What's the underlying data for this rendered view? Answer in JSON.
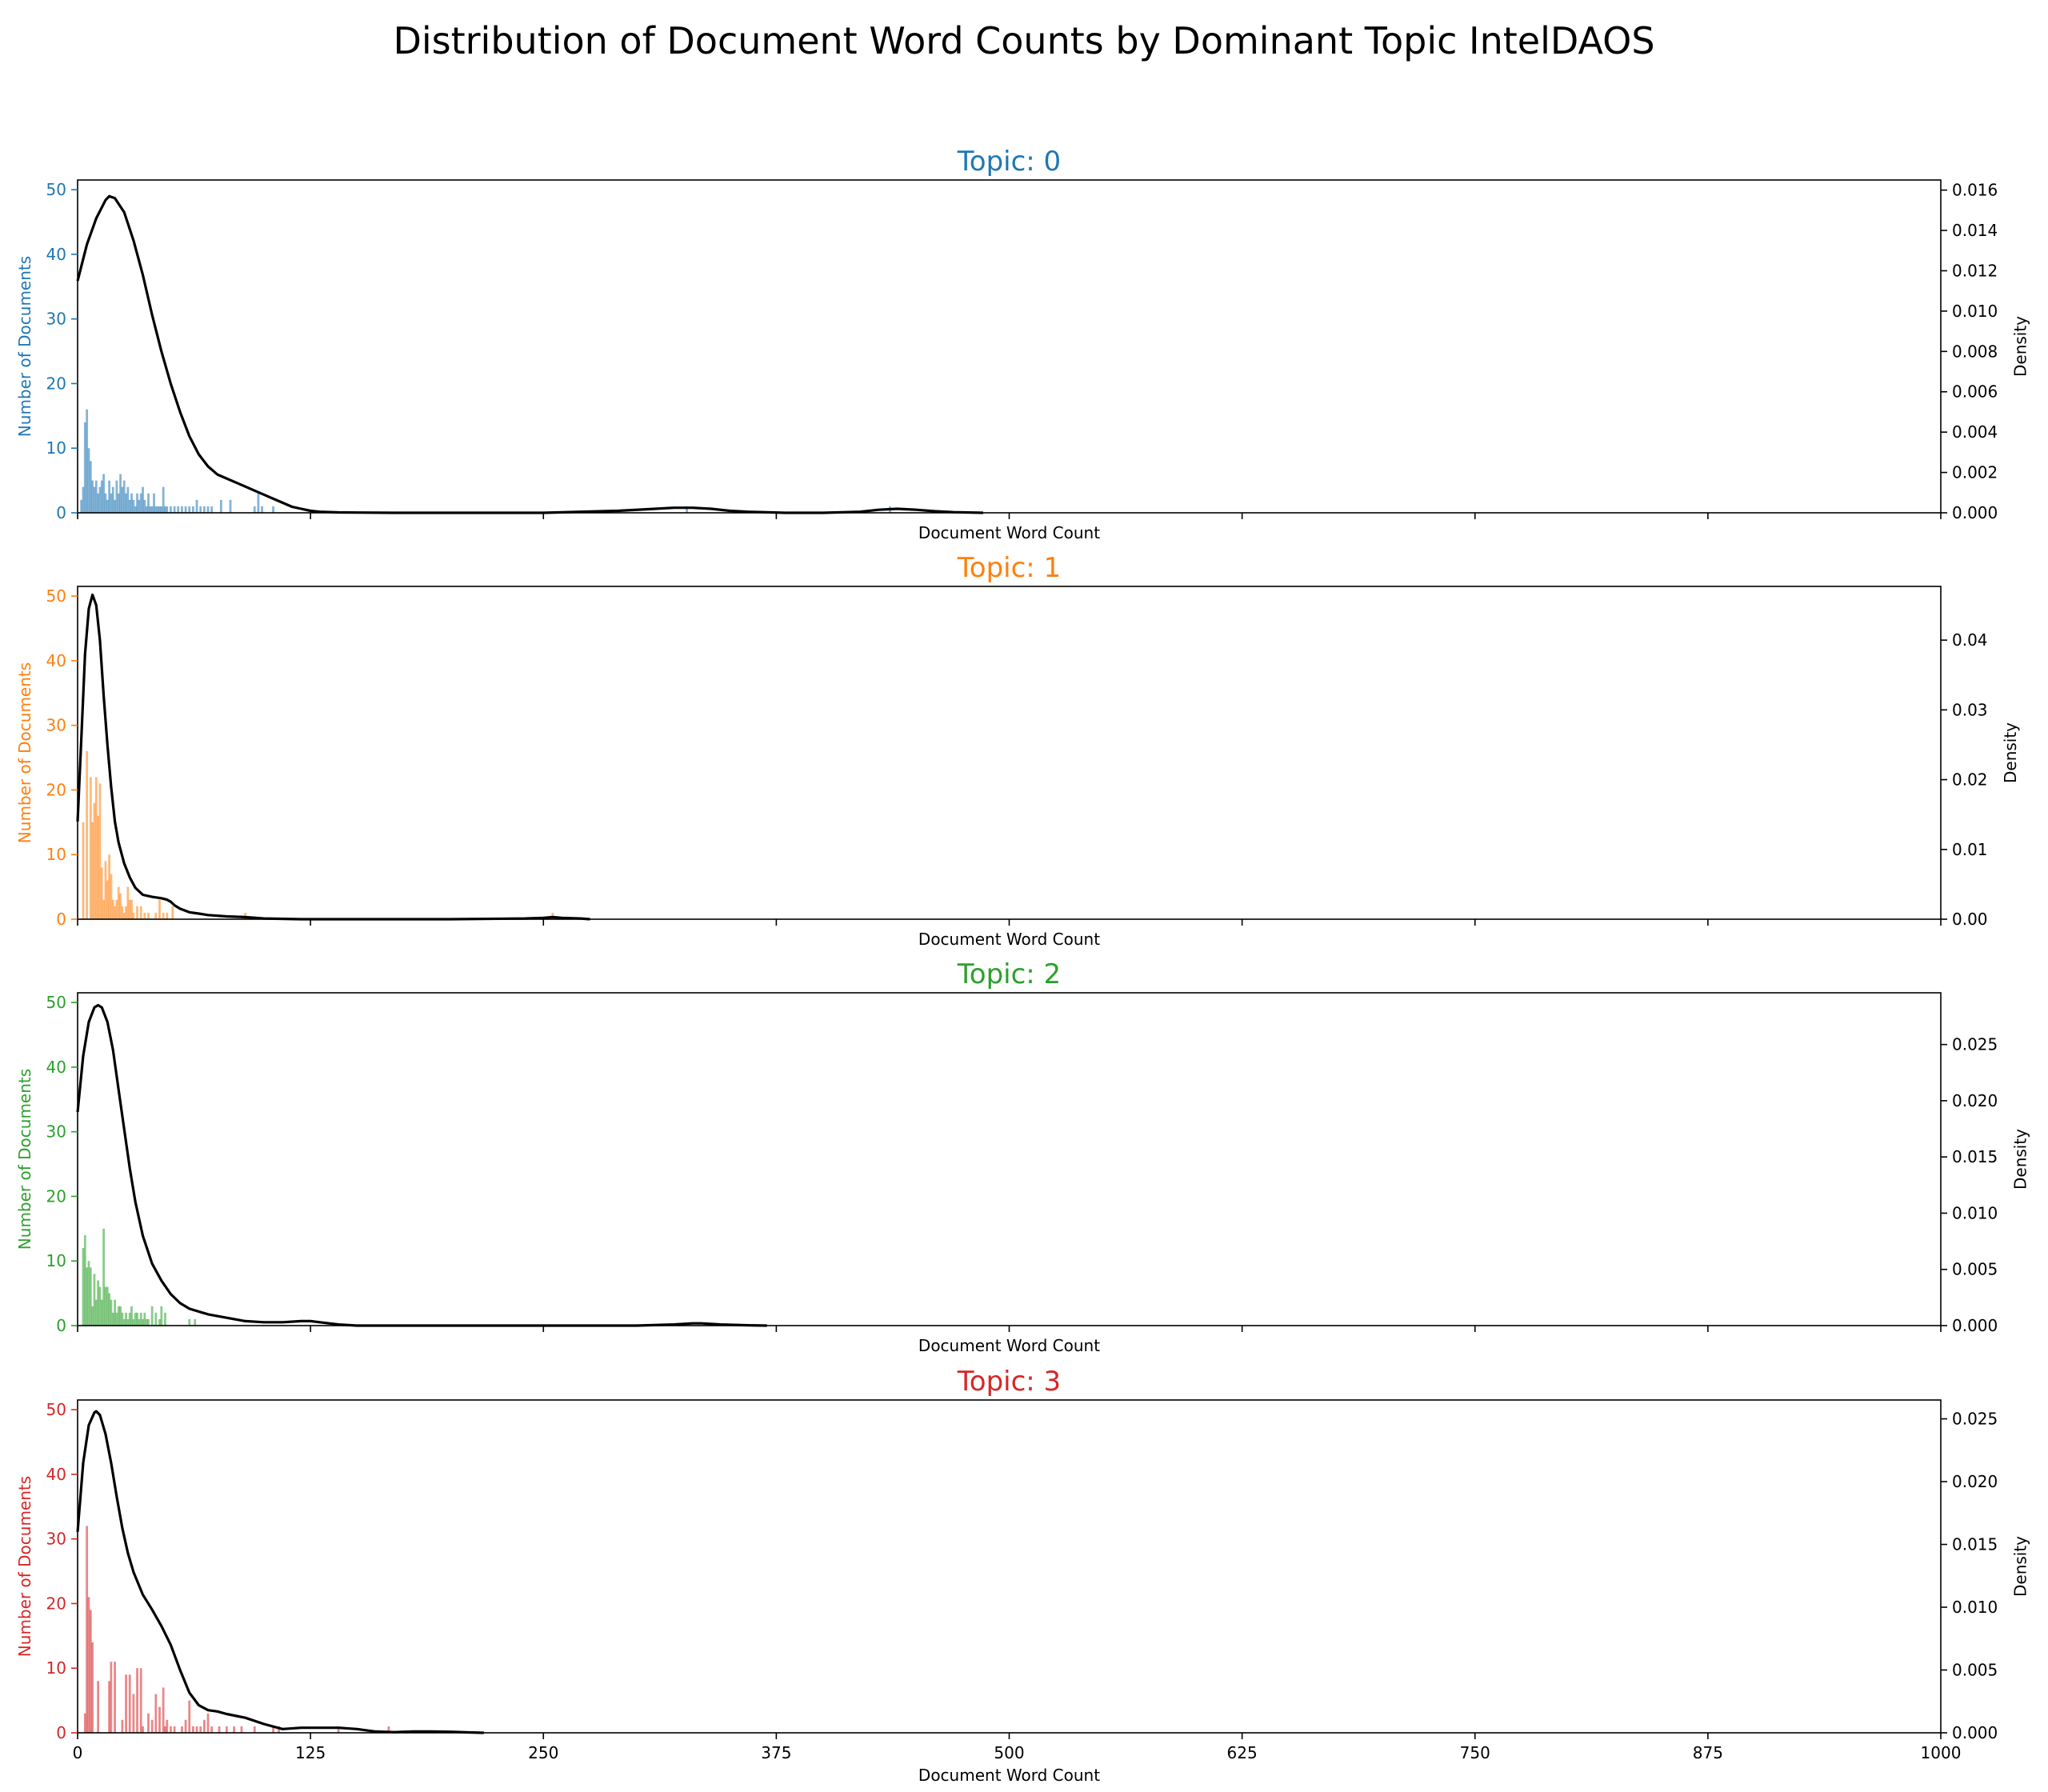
{
  "title": "Distribution of Document Word Counts by Dominant Topic IntelDAOS",
  "xlabel": "Document Word Count",
  "ylabel_left": "Number of Documents",
  "ylabel_right": "Density",
  "colors": {
    "topic0": "#1f77b4",
    "topic1": "#ff7f0e",
    "topic2": "#2ca02c",
    "topic3": "#d62728",
    "kde": "#000000"
  },
  "chart_data": [
    {
      "type": "bar",
      "title": "Topic: 0",
      "color": "#1f77b4",
      "xlim": [
        0,
        1000
      ],
      "ylim": [
        0,
        51.5
      ],
      "yticks": [
        0,
        10,
        20,
        30,
        40,
        50
      ],
      "xticks": [
        0,
        125,
        250,
        375,
        500,
        625,
        750,
        875,
        1000
      ],
      "density_ylim": [
        0,
        0.0165
      ],
      "density_ticks": [
        0.0,
        0.002,
        0.004,
        0.006,
        0.008,
        0.01,
        0.012,
        0.014,
        0.016
      ],
      "density_tick_labels": [
        "0.000",
        "0.002",
        "0.004",
        "0.006",
        "0.008",
        "0.010",
        "0.012",
        "0.014",
        "0.016"
      ],
      "histogram": {
        "x": [
          2,
          3,
          4,
          5,
          6,
          7,
          8,
          9,
          10,
          11,
          12,
          13,
          14,
          15,
          16,
          17,
          18,
          19,
          20,
          21,
          22,
          23,
          24,
          25,
          26,
          27,
          28,
          29,
          30,
          31,
          32,
          33,
          34,
          35,
          36,
          37,
          38,
          39,
          40,
          41,
          42,
          43,
          44,
          45,
          46,
          47,
          48,
          50,
          52,
          54,
          56,
          58,
          60,
          62,
          64,
          66,
          68,
          70,
          72,
          77,
          82,
          95,
          97,
          99,
          105,
          327,
          436
        ],
        "counts": [
          2,
          4,
          14,
          16,
          10,
          8,
          5,
          4,
          5,
          3,
          4,
          5,
          6,
          3,
          2,
          5,
          3,
          4,
          2,
          5,
          3,
          6,
          4,
          5,
          3,
          4,
          2,
          3,
          2,
          1,
          3,
          2,
          3,
          4,
          2,
          1,
          3,
          1,
          1,
          3,
          1,
          1,
          1,
          1,
          4,
          1,
          1,
          1,
          1,
          1,
          1,
          1,
          1,
          1,
          2,
          1,
          1,
          1,
          1,
          2,
          2,
          1,
          3,
          1,
          1,
          1,
          1
        ]
      },
      "kde": {
        "x": [
          0,
          5,
          10,
          15,
          17,
          20,
          25,
          30,
          35,
          40,
          45,
          50,
          55,
          60,
          65,
          70,
          75,
          80,
          85,
          90,
          95,
          100,
          105,
          110,
          115,
          120,
          125,
          130,
          140,
          150,
          170,
          200,
          250,
          290,
          310,
          320,
          330,
          340,
          350,
          360,
          380,
          400,
          420,
          430,
          440,
          450,
          460,
          470,
          486
        ],
        "density": [
          0.0115,
          0.0133,
          0.0146,
          0.0155,
          0.0157,
          0.0156,
          0.0149,
          0.0135,
          0.0118,
          0.0098,
          0.008,
          0.0064,
          0.005,
          0.0038,
          0.0029,
          0.0023,
          0.0019,
          0.0017,
          0.0015,
          0.0013,
          0.0011,
          0.0009,
          0.0007,
          0.0005,
          0.0003,
          0.0002,
          0.0001,
          5e-05,
          2e-05,
          1e-05,
          0.0,
          0.0,
          0.0,
          0.0001,
          0.0002,
          0.00025,
          0.00025,
          0.0002,
          0.0001,
          5e-05,
          0.0,
          0.0,
          5e-05,
          0.00015,
          0.0002,
          0.00015,
          8e-05,
          3e-05,
          0.0
        ]
      }
    },
    {
      "type": "bar",
      "title": "Topic: 1",
      "color": "#ff7f0e",
      "xlim": [
        0,
        1000
      ],
      "ylim": [
        0,
        51.5
      ],
      "yticks": [
        0,
        10,
        20,
        30,
        40,
        50
      ],
      "xticks": [
        0,
        125,
        250,
        375,
        500,
        625,
        750,
        875,
        1000
      ],
      "density_ylim": [
        0,
        0.0477
      ],
      "density_ticks": [
        0.0,
        0.01,
        0.02,
        0.03,
        0.04
      ],
      "density_tick_labels": [
        "0.00",
        "0.01",
        "0.02",
        "0.03",
        "0.04"
      ],
      "histogram": {
        "x": [
          3,
          5,
          7,
          8,
          9,
          10,
          11,
          12,
          13,
          14,
          15,
          16,
          17,
          18,
          19,
          20,
          21,
          22,
          23,
          24,
          25,
          26,
          27,
          28,
          29,
          30,
          32,
          34,
          36,
          38,
          42,
          44,
          46,
          48,
          51,
          90,
          255
        ],
        "counts": [
          15,
          26,
          22,
          15,
          18,
          22,
          16,
          21,
          8,
          3,
          9,
          6,
          10,
          7,
          3,
          2,
          3,
          5,
          4,
          2,
          1,
          2,
          5,
          3,
          3,
          1,
          2,
          2,
          1,
          1,
          1,
          3,
          1,
          1,
          2,
          1,
          1
        ]
      },
      "kde": {
        "x": [
          0,
          2,
          4,
          6,
          8,
          10,
          12,
          14,
          16,
          18,
          20,
          22,
          25,
          28,
          31,
          35,
          40,
          45,
          48,
          50,
          52,
          55,
          60,
          65,
          70,
          80,
          90,
          100,
          120,
          150,
          200,
          240,
          250,
          255,
          260,
          270,
          275
        ],
        "density": [
          0.014,
          0.026,
          0.038,
          0.0445,
          0.0465,
          0.045,
          0.04,
          0.032,
          0.025,
          0.019,
          0.014,
          0.011,
          0.008,
          0.006,
          0.0045,
          0.0035,
          0.0032,
          0.003,
          0.0028,
          0.0025,
          0.002,
          0.0015,
          0.001,
          0.0008,
          0.0006,
          0.0004,
          0.0003,
          0.0001,
          0.0,
          0.0,
          0.0,
          0.0001,
          0.0002,
          0.0003,
          0.0002,
          0.0001,
          0.0
        ]
      }
    },
    {
      "type": "bar",
      "title": "Topic: 2",
      "color": "#2ca02c",
      "xlim": [
        0,
        1000
      ],
      "ylim": [
        0,
        51.5
      ],
      "yticks": [
        0,
        10,
        20,
        30,
        40,
        50
      ],
      "xticks": [
        0,
        125,
        250,
        375,
        500,
        625,
        750,
        875,
        1000
      ],
      "density_ylim": [
        0,
        0.0296
      ],
      "density_ticks": [
        0.0,
        0.005,
        0.01,
        0.015,
        0.02,
        0.025
      ],
      "density_tick_labels": [
        "0.000",
        "0.005",
        "0.010",
        "0.015",
        "0.020",
        "0.025"
      ],
      "histogram": {
        "x": [
          3,
          4,
          5,
          6,
          7,
          8,
          9,
          10,
          11,
          12,
          13,
          14,
          15,
          16,
          17,
          18,
          19,
          20,
          21,
          22,
          23,
          24,
          25,
          26,
          27,
          28,
          29,
          30,
          31,
          32,
          33,
          34,
          35,
          36,
          37,
          38,
          40,
          42,
          44,
          45,
          47,
          60,
          63
        ],
        "counts": [
          12,
          14,
          9,
          10,
          9,
          3,
          8,
          4,
          7,
          6,
          4,
          15,
          6,
          6,
          5,
          4,
          2,
          4,
          2,
          3,
          3,
          2,
          1,
          2,
          1,
          2,
          3,
          1,
          2,
          2,
          1,
          2,
          1,
          2,
          1,
          1,
          3,
          2,
          1,
          3,
          2,
          1,
          1
        ]
      },
      "kde": {
        "x": [
          0,
          3,
          6,
          9,
          11,
          13,
          16,
          19,
          22,
          25,
          28,
          31,
          35,
          40,
          45,
          50,
          55,
          60,
          70,
          80,
          90,
          100,
          110,
          120,
          125,
          130,
          140,
          150,
          170,
          200,
          250,
          300,
          320,
          330,
          335,
          345,
          360,
          370
        ],
        "density": [
          0.019,
          0.024,
          0.027,
          0.0283,
          0.0285,
          0.0283,
          0.027,
          0.0245,
          0.021,
          0.0175,
          0.014,
          0.011,
          0.008,
          0.0055,
          0.004,
          0.0028,
          0.002,
          0.0015,
          0.001,
          0.0007,
          0.0004,
          0.0003,
          0.0003,
          0.0004,
          0.0004,
          0.0003,
          0.0001,
          0.0,
          0.0,
          0.0,
          0.0,
          0.0,
          0.0001,
          0.0002,
          0.0002,
          0.0001,
          3e-05,
          0.0
        ]
      }
    },
    {
      "type": "bar",
      "title": "Topic: 3",
      "color": "#d62728",
      "xlim": [
        0,
        1000
      ],
      "ylim": [
        0,
        51.5
      ],
      "yticks": [
        0,
        10,
        20,
        30,
        40,
        50
      ],
      "xticks": [
        0,
        125,
        250,
        375,
        500,
        625,
        750,
        875,
        1000
      ],
      "xtick_labels": [
        "0",
        "125",
        "250",
        "375",
        "500",
        "625",
        "750",
        "875",
        "1000"
      ],
      "density_ylim": [
        0,
        0.0265
      ],
      "density_ticks": [
        0.0,
        0.005,
        0.01,
        0.015,
        0.02,
        0.025
      ],
      "density_tick_labels": [
        "0.000",
        "0.005",
        "0.010",
        "0.015",
        "0.020",
        "0.025"
      ],
      "histogram": {
        "x": [
          4,
          5,
          6,
          7,
          8,
          11,
          17,
          18,
          20,
          24,
          26,
          28,
          30,
          32,
          34,
          35,
          38,
          40,
          42,
          44,
          46,
          47,
          48,
          50,
          52,
          56,
          58,
          60,
          62,
          64,
          66,
          68,
          70,
          72,
          76,
          80,
          84,
          88,
          95,
          105,
          108,
          140,
          167
        ],
        "counts": [
          3,
          32,
          21,
          19,
          14,
          8,
          8,
          11,
          11,
          2,
          9,
          9,
          6,
          10,
          10,
          1,
          3,
          2,
          6,
          4,
          7,
          1,
          2,
          1,
          1,
          1,
          2,
          5,
          1,
          1,
          1,
          2,
          3,
          1,
          1,
          1,
          1,
          1,
          1,
          1,
          1,
          1,
          1
        ]
      },
      "kde": {
        "x": [
          0,
          3,
          6,
          9,
          10,
          12,
          15,
          18,
          21,
          24,
          27,
          30,
          35,
          40,
          45,
          50,
          55,
          60,
          65,
          70,
          75,
          80,
          90,
          100,
          110,
          120,
          130,
          140,
          150,
          155,
          160,
          170,
          180,
          190,
          200,
          210,
          218
        ],
        "density": [
          0.016,
          0.0215,
          0.0245,
          0.0255,
          0.0256,
          0.0253,
          0.0238,
          0.0215,
          0.0188,
          0.0163,
          0.0143,
          0.0128,
          0.011,
          0.0098,
          0.0085,
          0.007,
          0.005,
          0.0032,
          0.0022,
          0.0018,
          0.0017,
          0.0015,
          0.0012,
          0.0007,
          0.0003,
          0.0004,
          0.0004,
          0.0004,
          0.0003,
          0.0002,
          0.0001,
          5e-05,
          0.0001,
          0.0001,
          8e-05,
          3e-05,
          0.0
        ]
      }
    }
  ]
}
